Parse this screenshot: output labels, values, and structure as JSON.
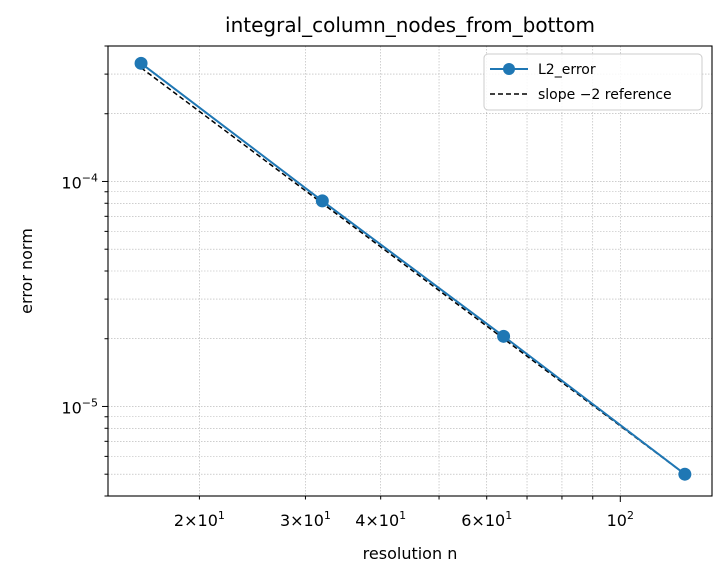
{
  "chart_data": {
    "type": "line",
    "title": "integral_column_nodes_from_bottom",
    "xlabel": "resolution n",
    "ylabel": "error norm",
    "xscale": "log",
    "yscale": "log",
    "xlim": [
      14.1,
      142
    ],
    "ylim": [
      4e-06,
      0.0004
    ],
    "grid": true,
    "legend_position": "top-right",
    "x_ticks": [
      {
        "value": 20,
        "base": "2×10",
        "exp": "1"
      },
      {
        "value": 30,
        "base": "3×10",
        "exp": "1"
      },
      {
        "value": 40,
        "base": "4×10",
        "exp": "1"
      },
      {
        "value": 60,
        "base": "6×10",
        "exp": "1"
      },
      {
        "value": 100,
        "base": "10",
        "exp": "2"
      }
    ],
    "y_ticks": [
      {
        "value": 0.0001,
        "base": "10",
        "exp": "−4"
      },
      {
        "value": 1e-05,
        "base": "10",
        "exp": "−5"
      }
    ],
    "series": [
      {
        "name": "L2_error",
        "style": "line-marker",
        "color": "#1f77b4",
        "x": [
          16,
          32,
          64,
          128
        ],
        "y": [
          0.000335,
          8.2e-05,
          2.05e-05,
          5e-06
        ]
      },
      {
        "name": "slope −2 reference",
        "style": "dashed",
        "color": "#000000",
        "x": [
          16,
          32,
          64,
          128
        ],
        "y": [
          0.00032,
          8e-05,
          2e-05,
          5e-06
        ]
      }
    ]
  }
}
